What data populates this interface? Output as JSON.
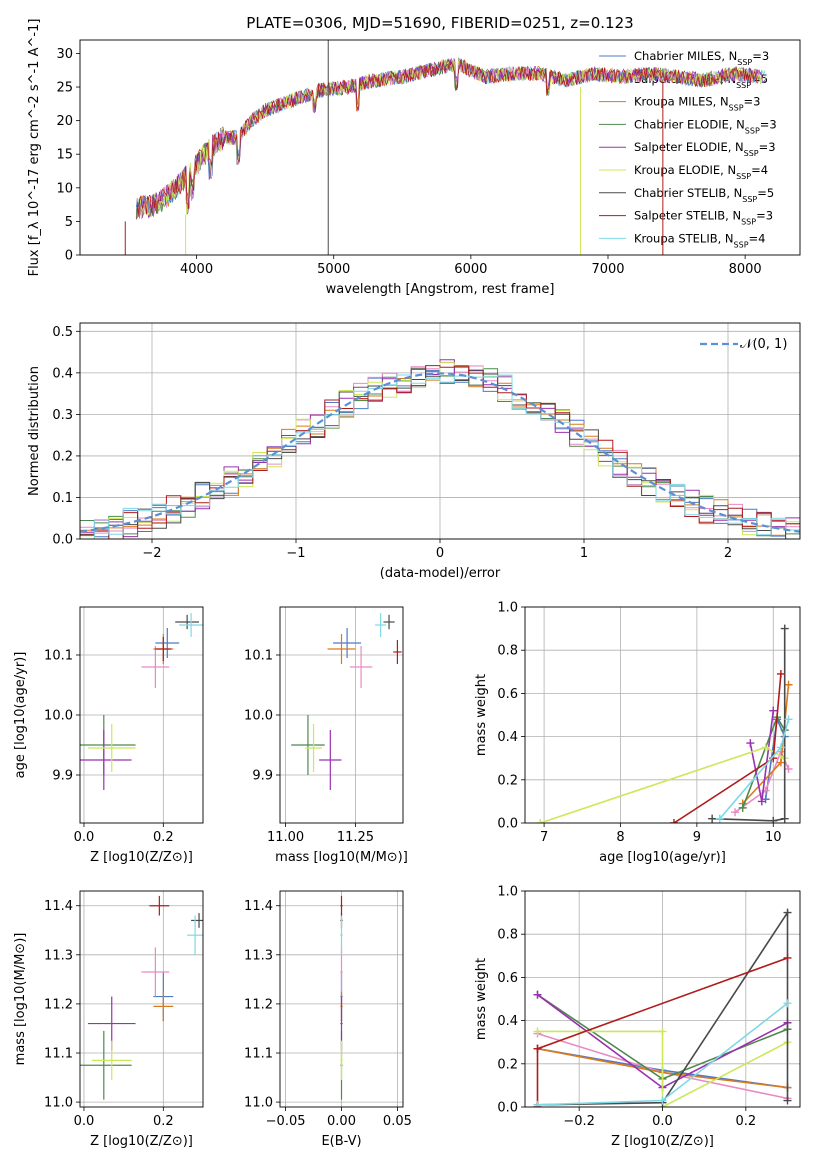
{
  "figure": {
    "title": "PLATE=0306, MJD=51690, FIBERID=0251, z=0.123"
  },
  "models": [
    {
      "name": "Chabrier MILES, N_SSP=3",
      "color": "#4e79c8"
    },
    {
      "name": "Salpeter MILES, N_SSP=5",
      "color": "#e98ac3"
    },
    {
      "name": "Kroupa MILES, N_SSP=3",
      "color": "#d97a1c"
    },
    {
      "name": "Chabrier ELODIE, N_SSP=3",
      "color": "#4d8a4d"
    },
    {
      "name": "Salpeter ELODIE, N_SSP=3",
      "color": "#9b30b0"
    },
    {
      "name": "Kroupa ELODIE, N_SSP=4",
      "color": "#cce85a"
    },
    {
      "name": "Chabrier STELIB, N_SSP=5",
      "color": "#4a4a4a"
    },
    {
      "name": "Salpeter STELIB, N_SSP=3",
      "color": "#b01c1c"
    },
    {
      "name": "Kroupa STELIB, N_SSP=4",
      "color": "#7fd8e6"
    }
  ],
  "chart_data": [
    {
      "id": "spectrum",
      "type": "line",
      "title": "PLATE=0306, MJD=51690, FIBERID=0251, z=0.123",
      "xlabel": "wavelength [Angstrom, rest frame]",
      "ylabel": "Flux [f_λ 10^-17 erg cm^-2 s^-1 A^-1]",
      "xlim": [
        3150,
        8400
      ],
      "ylim": [
        0,
        32
      ],
      "xticks": [
        "4000",
        "5000",
        "6000",
        "7000",
        "8000"
      ],
      "yticks": [
        "0",
        "5",
        "10",
        "15",
        "20",
        "25",
        "30"
      ],
      "continuum_x": [
        3600,
        3700,
        3800,
        3900,
        4000,
        4100,
        4200,
        4300,
        4400,
        4500,
        4700,
        4900,
        5100,
        5300,
        5500,
        5700,
        5900,
        6100,
        6300,
        6500,
        6700,
        6900,
        7100,
        7300,
        7500,
        7700,
        7900,
        8150
      ],
      "continuum_y": [
        7,
        7.5,
        9,
        11,
        13.5,
        16,
        17.5,
        17.5,
        20,
        21.5,
        23,
        24.5,
        25,
        26,
        26.5,
        27.5,
        28.5,
        26.5,
        27,
        27,
        26,
        27,
        26.5,
        27,
        26.5,
        26,
        27,
        26.5
      ],
      "spikes": [
        {
          "series": 6,
          "x": 4960,
          "ytop": 32
        },
        {
          "series": 7,
          "x": 3480,
          "ytop": 5
        },
        {
          "series": 5,
          "x": 3920,
          "ytop": 6
        },
        {
          "series": 5,
          "x": 6800,
          "ytop": 25
        },
        {
          "series": 7,
          "x": 7400,
          "ytop": 26
        }
      ]
    },
    {
      "id": "residuals",
      "type": "histogram",
      "xlabel": "(data-model)/error",
      "ylabel": "Normed distribution",
      "xlim": [
        -2.5,
        2.5
      ],
      "ylim": [
        0,
        0.52
      ],
      "xticks": [
        "−2",
        "−1",
        "0",
        "1",
        "2"
      ],
      "yticks": [
        "0.0",
        "0.1",
        "0.2",
        "0.3",
        "0.4",
        "0.5"
      ],
      "reference_label": "𝒩(0, 1)",
      "bin_width": 0.1
    },
    {
      "id": "age_vs_Z",
      "type": "scatter",
      "xlabel": "Z [log10(Z/Z⊙)]",
      "ylabel": "age [log10(age/yr)]",
      "xlim": [
        -0.01,
        0.3
      ],
      "ylim": [
        9.82,
        10.18
      ],
      "xticks": [
        "0.0",
        "0.2"
      ],
      "yticks": [
        "9.9",
        "10.0",
        "10.1"
      ],
      "points": [
        {
          "series": 0,
          "x": 0.21,
          "y": 10.12,
          "xerr": 0.03,
          "yerr": 0.025
        },
        {
          "series": 1,
          "x": 0.18,
          "y": 10.08,
          "xerr": 0.035,
          "yerr": 0.035
        },
        {
          "series": 2,
          "x": 0.2,
          "y": 10.11,
          "xerr": 0.025,
          "yerr": 0.025
        },
        {
          "series": 3,
          "x": 0.05,
          "y": 9.95,
          "xerr": 0.08,
          "yerr": 0.05
        },
        {
          "series": 4,
          "x": 0.05,
          "y": 9.925,
          "xerr": 0.07,
          "yerr": 0.05
        },
        {
          "series": 5,
          "x": 0.07,
          "y": 9.945,
          "xerr": 0.06,
          "yerr": 0.04
        },
        {
          "series": 6,
          "x": 0.26,
          "y": 10.155,
          "xerr": 0.03,
          "yerr": 0.012
        },
        {
          "series": 7,
          "x": 0.2,
          "y": 10.11,
          "xerr": 0.02,
          "yerr": 0.02
        },
        {
          "series": 8,
          "x": 0.27,
          "y": 10.15,
          "xerr": 0.03,
          "yerr": 0.02
        }
      ]
    },
    {
      "id": "age_vs_mass",
      "type": "scatter",
      "xlabel": "mass [log10(M/M⊙)]",
      "ylabel": "",
      "xlim": [
        10.98,
        11.42
      ],
      "ylim": [
        9.82,
        10.18
      ],
      "xticks": [
        "11.00",
        "11.25"
      ],
      "yticks": [
        "9.9",
        "10.0",
        "10.1"
      ],
      "points": [
        {
          "series": 0,
          "x": 11.22,
          "y": 10.12,
          "xerr": 0.05,
          "yerr": 0.025
        },
        {
          "series": 1,
          "x": 11.27,
          "y": 10.08,
          "xerr": 0.04,
          "yerr": 0.035
        },
        {
          "series": 2,
          "x": 11.2,
          "y": 10.11,
          "xerr": 0.05,
          "yerr": 0.025
        },
        {
          "series": 3,
          "x": 11.08,
          "y": 9.95,
          "xerr": 0.06,
          "yerr": 0.05
        },
        {
          "series": 4,
          "x": 11.16,
          "y": 9.925,
          "xerr": 0.04,
          "yerr": 0.05
        },
        {
          "series": 5,
          "x": 11.1,
          "y": 9.945,
          "xerr": 0.03,
          "yerr": 0.04
        },
        {
          "series": 6,
          "x": 11.37,
          "y": 10.155,
          "xerr": 0.02,
          "yerr": 0.012
        },
        {
          "series": 7,
          "x": 11.4,
          "y": 10.105,
          "xerr": 0.015,
          "yerr": 0.02
        },
        {
          "series": 8,
          "x": 11.34,
          "y": 10.15,
          "xerr": 0.02,
          "yerr": 0.02
        }
      ]
    },
    {
      "id": "weight_vs_age",
      "type": "line",
      "xlabel": "age [log10(age/yr)]",
      "ylabel": "mass weight",
      "xlim": [
        6.75,
        10.35
      ],
      "ylim": [
        0,
        1
      ],
      "xticks": [
        "7",
        "8",
        "9",
        "10"
      ],
      "yticks": [
        "0.0",
        "0.2",
        "0.4",
        "0.6",
        "0.8",
        "1.0"
      ],
      "series": [
        {
          "series": 0,
          "x": [
            9.9,
            10.05,
            10.15
          ],
          "y": [
            0.11,
            0.48,
            0.4
          ]
        },
        {
          "series": 1,
          "x": [
            9.5,
            9.9,
            10.1,
            10.2
          ],
          "y": [
            0.05,
            0.15,
            0.33,
            0.25
          ]
        },
        {
          "series": 2,
          "x": [
            9.6,
            10.1,
            10.2
          ],
          "y": [
            0.09,
            0.28,
            0.64
          ]
        },
        {
          "series": 3,
          "x": [
            9.6,
            10.05,
            10.15
          ],
          "y": [
            0.07,
            0.49,
            0.43
          ]
        },
        {
          "series": 4,
          "x": [
            9.7,
            9.85,
            10.0
          ],
          "y": [
            0.37,
            0.1,
            0.52
          ]
        },
        {
          "series": 5,
          "x": [
            6.95,
            9.9,
            10.15
          ],
          "y": [
            0.0,
            0.35,
            0.3
          ]
        },
        {
          "series": 6,
          "x": [
            9.2,
            10.0,
            10.15,
            10.15
          ],
          "y": [
            0.02,
            0.01,
            0.02,
            0.9
          ]
        },
        {
          "series": 7,
          "x": [
            8.7,
            10.0,
            10.1
          ],
          "y": [
            0.0,
            0.3,
            0.69
          ]
        },
        {
          "series": 8,
          "x": [
            9.3,
            10.1,
            10.2
          ],
          "y": [
            0.02,
            0.35,
            0.48
          ]
        }
      ]
    },
    {
      "id": "mass_vs_Z",
      "type": "scatter",
      "xlabel": "Z [log10(Z/Z⊙)]",
      "ylabel": "mass [log10(M/M⊙)]",
      "xlim": [
        -0.01,
        0.3
      ],
      "ylim": [
        10.99,
        11.43
      ],
      "xticks": [
        "0.0",
        "0.2"
      ],
      "yticks": [
        "11.0",
        "11.1",
        "11.2",
        "11.3",
        "11.4"
      ],
      "points": [
        {
          "series": 0,
          "x": 0.2,
          "y": 11.215,
          "xerr": 0.025,
          "yerr": 0.05
        },
        {
          "series": 1,
          "x": 0.18,
          "y": 11.265,
          "xerr": 0.035,
          "yerr": 0.05
        },
        {
          "series": 2,
          "x": 0.2,
          "y": 11.195,
          "xerr": 0.025,
          "yerr": 0.03
        },
        {
          "series": 3,
          "x": 0.05,
          "y": 11.075,
          "xerr": 0.07,
          "yerr": 0.07
        },
        {
          "series": 4,
          "x": 0.07,
          "y": 11.16,
          "xerr": 0.06,
          "yerr": 0.055
        },
        {
          "series": 5,
          "x": 0.07,
          "y": 11.085,
          "xerr": 0.05,
          "yerr": 0.04
        },
        {
          "series": 6,
          "x": 0.29,
          "y": 11.37,
          "xerr": 0.02,
          "yerr": 0.015
        },
        {
          "series": 7,
          "x": 0.19,
          "y": 11.4,
          "xerr": 0.025,
          "yerr": 0.02
        },
        {
          "series": 8,
          "x": 0.28,
          "y": 11.34,
          "xerr": 0.02,
          "yerr": 0.04
        }
      ]
    },
    {
      "id": "mass_vs_ebv",
      "type": "scatter",
      "xlabel": "E(B-V)",
      "ylabel": "",
      "xlim": [
        -0.055,
        0.055
      ],
      "ylim": [
        10.99,
        11.43
      ],
      "xticks": [
        "−0.05",
        "0.00",
        "0.05"
      ],
      "yticks": [
        "11.0",
        "11.1",
        "11.2",
        "11.3",
        "11.4"
      ],
      "points": [
        {
          "series": 0,
          "x": 0,
          "y": 11.215,
          "xerr": 0.001,
          "yerr": 0.05
        },
        {
          "series": 1,
          "x": 0,
          "y": 11.265,
          "xerr": 0.001,
          "yerr": 0.05
        },
        {
          "series": 2,
          "x": 0,
          "y": 11.195,
          "xerr": 0.001,
          "yerr": 0.03
        },
        {
          "series": 3,
          "x": 0,
          "y": 11.075,
          "xerr": 0.001,
          "yerr": 0.07
        },
        {
          "series": 4,
          "x": 0,
          "y": 11.16,
          "xerr": 0.001,
          "yerr": 0.055
        },
        {
          "series": 5,
          "x": 0,
          "y": 11.085,
          "xerr": 0.001,
          "yerr": 0.04
        },
        {
          "series": 6,
          "x": 0,
          "y": 11.37,
          "xerr": 0.001,
          "yerr": 0.015
        },
        {
          "series": 7,
          "x": 0,
          "y": 11.4,
          "xerr": 0.001,
          "yerr": 0.02
        },
        {
          "series": 8,
          "x": 0,
          "y": 11.34,
          "xerr": 0.001,
          "yerr": 0.04
        }
      ]
    },
    {
      "id": "weight_vs_Z",
      "type": "line",
      "xlabel": "Z [log10(Z/Z⊙)]",
      "ylabel": "mass weight",
      "xlim": [
        -0.33,
        0.33
      ],
      "ylim": [
        0,
        1
      ],
      "xticks": [
        "−0.2",
        "0.0",
        "0.2"
      ],
      "yticks": [
        "0.0",
        "0.2",
        "0.4",
        "0.6",
        "0.8",
        "1.0"
      ],
      "series": [
        {
          "series": 0,
          "x": [
            -0.3,
            0.0,
            0.3
          ],
          "y": [
            0.27,
            0.17,
            0.09
          ]
        },
        {
          "series": 1,
          "x": [
            -0.3,
            0.0,
            0.3
          ],
          "y": [
            0.34,
            0.16,
            0.04
          ]
        },
        {
          "series": 2,
          "x": [
            -0.3,
            0.0,
            0.3
          ],
          "y": [
            0.27,
            0.16,
            0.09
          ]
        },
        {
          "series": 3,
          "x": [
            -0.3,
            0.0,
            0.3
          ],
          "y": [
            0.52,
            0.13,
            0.36
          ]
        },
        {
          "series": 4,
          "x": [
            -0.3,
            0.0,
            0.3
          ],
          "y": [
            0.52,
            0.09,
            0.39
          ]
        },
        {
          "series": 5,
          "x": [
            -0.3,
            0.0,
            0.0,
            0.3
          ],
          "y": [
            0.35,
            0.35,
            0.0,
            0.3
          ]
        },
        {
          "series": 6,
          "x": [
            -0.3,
            0.0,
            0.3,
            0.3
          ],
          "y": [
            0.01,
            0.02,
            0.9,
            0.03
          ]
        },
        {
          "series": 7,
          "x": [
            -0.3,
            -0.3,
            0.3
          ],
          "y": [
            0.0,
            0.27,
            0.69
          ]
        },
        {
          "series": 8,
          "x": [
            -0.3,
            0.0,
            0.3
          ],
          "y": [
            0.01,
            0.03,
            0.48
          ]
        }
      ]
    }
  ]
}
